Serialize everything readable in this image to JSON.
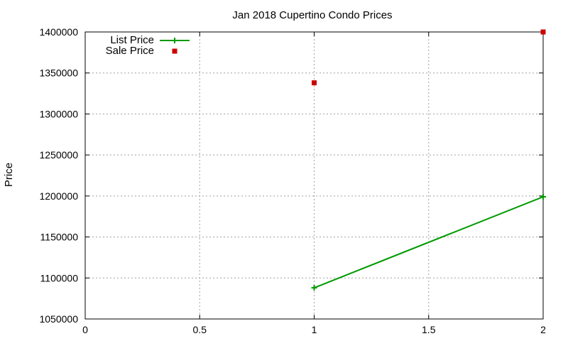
{
  "chart_data": {
    "type": "line",
    "title": "Jan 2018 Cupertino Condo Prices",
    "xlabel": "",
    "ylabel": "Price",
    "xlim": [
      0,
      2
    ],
    "ylim": [
      1050000,
      1400000
    ],
    "xticks": [
      "0",
      "0.5",
      "1",
      "1.5",
      "2"
    ],
    "yticks": [
      "1050000",
      "1100000",
      "1150000",
      "1200000",
      "1250000",
      "1300000",
      "1350000",
      "1400000"
    ],
    "grid": true,
    "legend_position": "top-left",
    "series": [
      {
        "name": "List Price",
        "style": "line-with-plus-markers",
        "color": "#009900",
        "points": [
          {
            "x": 1,
            "y": 1088000
          },
          {
            "x": 2,
            "y": 1199000
          }
        ]
      },
      {
        "name": "Sale Price",
        "style": "square-markers",
        "color": "#cc0000",
        "points": [
          {
            "x": 1,
            "y": 1338000
          },
          {
            "x": 2,
            "y": 1400000
          }
        ]
      }
    ]
  }
}
